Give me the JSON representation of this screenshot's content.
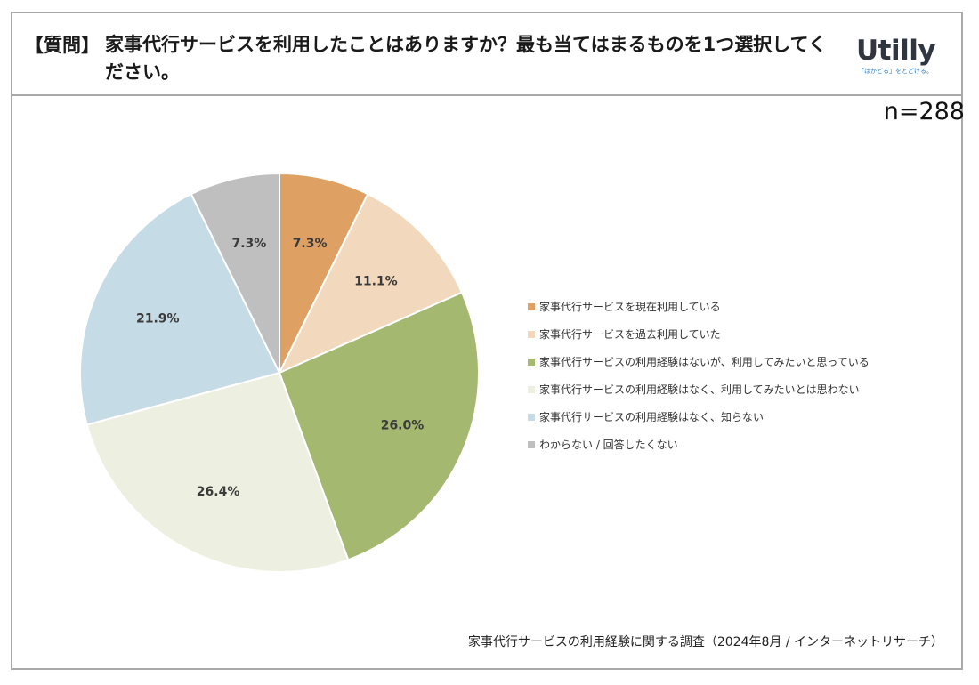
{
  "header": {
    "tag": "【質問】",
    "question": "家事代行サービスを利用したことはありますか？最も当てはまるものを1つ選択してください。"
  },
  "logo": {
    "word": "Utilly",
    "tagline": "「はかどる」をとどける。"
  },
  "sample_size": "n=288",
  "source": "家事代行サービスの利用経験に関する調査（2024年8月 / インターネットリサーチ）",
  "colors": {
    "frame": "#a9a9a9",
    "slices": [
      "#dfa064",
      "#f2d9bd",
      "#a4b870",
      "#edf0e1",
      "#c5dbe5",
      "#bfbfbf"
    ]
  },
  "chart_data": {
    "type": "pie",
    "start": "12 o'clock, clockwise",
    "categories": [
      "家事代行サービスを現在利用している",
      "家事代行サービスを過去利用していた",
      "家事代行サービスの利用経験はないが、利用してみたいと思っている",
      "家事代行サービスの利用経験はなく、利用してみたいとは思わない",
      "家事代行サービスの利用経験はなく、知らない",
      "わからない / 回答したくない"
    ],
    "values": [
      7.3,
      11.1,
      26.0,
      26.4,
      21.9,
      7.3
    ],
    "data_labels": [
      "7.3%",
      "11.1%",
      "26.0%",
      "26.4%",
      "21.9%",
      "7.3%"
    ],
    "legend_position": "right"
  }
}
